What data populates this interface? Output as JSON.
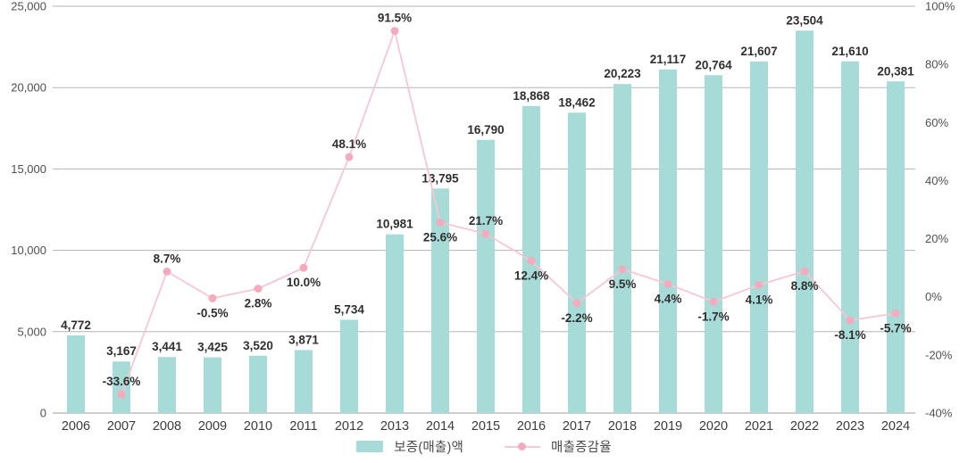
{
  "chart_data": {
    "type": "bar+line",
    "title": "",
    "categories": [
      "2006",
      "2007",
      "2008",
      "2009",
      "2010",
      "2011",
      "2012",
      "2013",
      "2014",
      "2015",
      "2016",
      "2017",
      "2018",
      "2019",
      "2020",
      "2021",
      "2022",
      "2023",
      "2024"
    ],
    "series": [
      {
        "name": "보증(매출)액",
        "type": "bar",
        "axis": "left",
        "values": [
          4772,
          3167,
          3441,
          3425,
          3520,
          3871,
          5734,
          10981,
          13795,
          16790,
          18868,
          18462,
          20223,
          21117,
          20764,
          21607,
          23504,
          21610,
          20381
        ],
        "labels": [
          "4,772",
          "3,167",
          "3,441",
          "3,425",
          "3,520",
          "3,871",
          "5,734",
          "10,981",
          "13,795",
          "16,790",
          "18,868",
          "18,462",
          "20,223",
          "21,117",
          "20,764",
          "21,607",
          "23,504",
          "21,610",
          "20,381"
        ]
      },
      {
        "name": "매출증감율",
        "type": "line",
        "axis": "right",
        "values": [
          null,
          -33.6,
          8.7,
          -0.5,
          2.8,
          10.0,
          48.1,
          91.5,
          25.6,
          21.7,
          12.4,
          -2.2,
          9.5,
          4.4,
          -1.7,
          4.1,
          8.8,
          -8.1,
          -5.7
        ],
        "labels": [
          "",
          "-33.6%",
          "8.7%",
          "-0.5%",
          "2.8%",
          "10.0%",
          "48.1%",
          "91.5%",
          "25.6%",
          "21.7%",
          "12.4%",
          "-2.2%",
          "9.5%",
          "4.4%",
          "-1.7%",
          "4.1%",
          "8.8%",
          "-8.1%",
          "-5.7%"
        ],
        "label_side": [
          "",
          "above",
          "above",
          "below",
          "below",
          "below",
          "above",
          "above",
          "below",
          "above",
          "below",
          "below",
          "below",
          "below",
          "below",
          "below",
          "below",
          "below",
          "below"
        ]
      }
    ],
    "left_axis": {
      "min": 0,
      "max": 25000,
      "tick_labels": [
        "0",
        "5,000",
        "10,000",
        "15,000",
        "20,000",
        "25,000"
      ]
    },
    "right_axis": {
      "min": -40,
      "max": 100,
      "tick_labels": [
        "-40%",
        "-20%",
        "0%",
        "20%",
        "40%",
        "60%",
        "80%",
        "100%"
      ]
    },
    "grid": "horizontal-left-axis-only",
    "legend_position": "bottom-center"
  },
  "colors": {
    "bar": "#a6dbd7",
    "line": "#f7c6d1",
    "marker": "#f3abbd",
    "grid": "#b3b3b3",
    "axis_line": "#9c9c9c",
    "data_label": "#2f2f2f",
    "tick_label": "#4f4f4f",
    "year_label": "#3b3b3b"
  }
}
